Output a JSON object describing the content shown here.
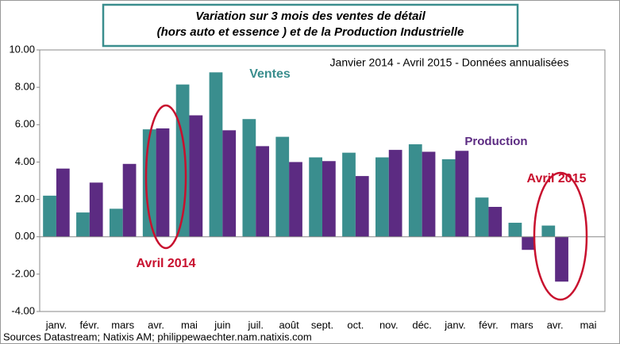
{
  "chart_data": {
    "type": "bar",
    "title": [
      "Variation sur 3 mois des ventes de détail",
      "(hors auto et essence ) et de la Production Industrielle"
    ],
    "subtitle": "Janvier 2014 - Avril 2015 - Données annualisées",
    "categories": [
      "janv.",
      "févr.",
      "mars",
      "avr.",
      "mai",
      "juin",
      "juil.",
      "août",
      "sept.",
      "oct.",
      "nov.",
      "déc.",
      "janv.",
      "févr.",
      "mars",
      "avr.",
      "mai"
    ],
    "series": [
      {
        "name": "Ventes",
        "color": "#3a8e8e",
        "values": [
          2.2,
          1.3,
          1.5,
          5.75,
          8.15,
          8.8,
          6.3,
          5.35,
          4.25,
          4.5,
          4.25,
          4.95,
          4.15,
          2.1,
          0.75,
          0.6,
          null
        ]
      },
      {
        "name": "Production",
        "color": "#5c2b82",
        "values": [
          3.65,
          2.9,
          3.9,
          5.8,
          6.5,
          5.7,
          4.85,
          4.0,
          4.05,
          3.25,
          4.65,
          4.55,
          4.6,
          1.6,
          -0.7,
          -2.4,
          null
        ]
      }
    ],
    "ylim": [
      -4,
      10
    ],
    "yticks": [
      {
        "value": -4,
        "label": "-4.00"
      },
      {
        "value": -2,
        "label": "-2.00"
      },
      {
        "value": 0,
        "label": "0.00"
      },
      {
        "value": 2,
        "label": "2.00"
      },
      {
        "value": 4,
        "label": "4.00"
      },
      {
        "value": 6,
        "label": "6.00"
      },
      {
        "value": 8,
        "label": "8.00"
      },
      {
        "value": 10,
        "label": "10.00"
      }
    ],
    "annotations": [
      "Avril 2014",
      "Avril 2015"
    ],
    "source": "Sources Datastream; Natixis AM; philippewaechter.nam.natixis.com"
  }
}
